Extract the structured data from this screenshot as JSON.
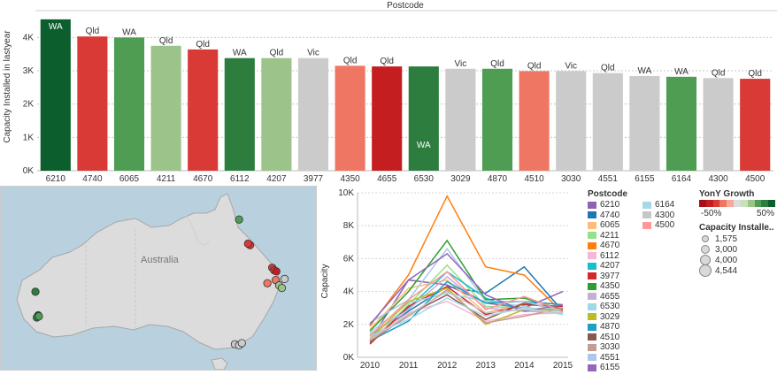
{
  "chart_data": [
    {
      "type": "bar",
      "title": "Postcode",
      "ylabel": "Capacity Installed in lastyear",
      "ylim": [
        0,
        4700
      ],
      "yticks": [
        0,
        1000,
        2000,
        3000,
        4000
      ],
      "ytick_labels": [
        "0K",
        "1K",
        "2K",
        "3K",
        "4K"
      ],
      "grid": true,
      "categories": [
        "6210",
        "4740",
        "6065",
        "4211",
        "4670",
        "6112",
        "4207",
        "3977",
        "4350",
        "4655",
        "6530",
        "3029",
        "4870",
        "4510",
        "3030",
        "4551",
        "6155",
        "6164",
        "4300",
        "4500"
      ],
      "values": [
        4544,
        4030,
        4000,
        3750,
        3640,
        3380,
        3380,
        3380,
        3150,
        3130,
        3130,
        3060,
        3060,
        2990,
        2990,
        2930,
        2840,
        2820,
        2780,
        2760
      ],
      "state_labels": [
        "WA",
        "Qld",
        "WA",
        "Qld",
        "Qld",
        "WA",
        "Qld",
        "Vic",
        "Qld",
        "Qld",
        "WA",
        "Vic",
        "Qld",
        "Qld",
        "Vic",
        "Qld",
        "WA",
        "WA",
        "Qld",
        "Qld"
      ],
      "bar_colors": [
        "#0c5e2c",
        "#d93a36",
        "#4f9d53",
        "#9cc48a",
        "#d93a36",
        "#2c7d3e",
        "#9cc48a",
        "#cbcbcb",
        "#f07664",
        "#c41e20",
        "#2c7d3e",
        "#cbcbcb",
        "#4f9d53",
        "#f07664",
        "#cbcbcb",
        "#cbcbcb",
        "#cbcbcb",
        "#4f9d53",
        "#cbcbcb",
        "#d93a36"
      ]
    },
    {
      "type": "line",
      "ylabel": "Capacity",
      "x": [
        2010,
        2011,
        2012,
        2013,
        2014,
        2015
      ],
      "ylim": [
        0,
        10000
      ],
      "yticks": [
        0,
        2000,
        4000,
        6000,
        8000,
        10000
      ],
      "ytick_labels": [
        "0K",
        "2K",
        "4K",
        "6K",
        "8K",
        "10K"
      ],
      "series": [
        {
          "name": "6210",
          "color": "#8d63b4",
          "values": [
            1000,
            4700,
            4400,
            3300,
            3000,
            4000
          ]
        },
        {
          "name": "4740",
          "color": "#1f77b4",
          "values": [
            1100,
            2800,
            4300,
            3900,
            5500,
            2800
          ]
        },
        {
          "name": "6065",
          "color": "#ffbb78",
          "values": [
            1700,
            4200,
            4700,
            2700,
            3300,
            3000
          ]
        },
        {
          "name": "4211",
          "color": "#98df8a",
          "values": [
            900,
            3200,
            5600,
            3100,
            3000,
            2800
          ]
        },
        {
          "name": "4670",
          "color": "#ff7f0e",
          "values": [
            1900,
            5000,
            9800,
            5500,
            5000,
            2700
          ]
        },
        {
          "name": "6112",
          "color": "#f7b6d2",
          "values": [
            1200,
            2700,
            3400,
            2200,
            2600,
            2700
          ]
        },
        {
          "name": "4207",
          "color": "#17becf",
          "values": [
            1300,
            3000,
            5200,
            3600,
            2800,
            3000
          ]
        },
        {
          "name": "3977",
          "color": "#d62728",
          "values": [
            800,
            3100,
            4300,
            2600,
            3200,
            3100
          ]
        },
        {
          "name": "4350",
          "color": "#2ca02c",
          "values": [
            1600,
            4000,
            7100,
            3500,
            3600,
            2900
          ]
        },
        {
          "name": "4655",
          "color": "#c5b0d5",
          "values": [
            1400,
            2900,
            4900,
            3000,
            2800,
            2700
          ]
        },
        {
          "name": "6530",
          "color": "#9edae5",
          "values": [
            1500,
            3300,
            3900,
            3400,
            3100,
            2600
          ]
        },
        {
          "name": "3029",
          "color": "#bcbd22",
          "values": [
            1100,
            3400,
            4200,
            2000,
            2900,
            2900
          ]
        },
        {
          "name": "4870",
          "color": "#1f9fc4",
          "values": [
            1000,
            2200,
            4600,
            3300,
            3400,
            3200
          ]
        },
        {
          "name": "4510",
          "color": "#8c564b",
          "values": [
            900,
            2600,
            3800,
            2300,
            3300,
            2900
          ]
        },
        {
          "name": "3030",
          "color": "#c49c94",
          "values": [
            1000,
            2500,
            4100,
            2100,
            2500,
            3000
          ]
        },
        {
          "name": "4551",
          "color": "#aec7e8",
          "values": [
            2100,
            3500,
            6600,
            3400,
            3400,
            2800
          ]
        },
        {
          "name": "6155",
          "color": "#9467bd",
          "values": [
            2000,
            4700,
            6300,
            3800,
            2800,
            3200
          ]
        },
        {
          "name": "6164",
          "color": "#a8d7e8",
          "values": [
            1300,
            2300,
            3600,
            2500,
            3000,
            2600
          ]
        },
        {
          "name": "4300",
          "color": "#c7c7c7",
          "values": [
            1100,
            2600,
            4000,
            2700,
            2900,
            2700
          ]
        },
        {
          "name": "4500",
          "color": "#ff9896",
          "values": [
            1300,
            3500,
            5200,
            2900,
            3700,
            2800
          ]
        }
      ]
    }
  ],
  "map": {
    "country_label": "Australia",
    "points": [
      {
        "color": "#4f9d53",
        "lon": 145.2,
        "lat": -14.5
      },
      {
        "color": "#d93a36",
        "lon": 146.8,
        "lat": -19.3
      },
      {
        "color": "#d93a36",
        "lon": 146.5,
        "lat": -19.0
      },
      {
        "color": "#d93a36",
        "lon": 150.0,
        "lat": -23.5
      },
      {
        "color": "#d93a36",
        "lon": 150.3,
        "lat": -24.0
      },
      {
        "color": "#c41e20",
        "lon": 150.6,
        "lat": -24.2
      },
      {
        "color": "#f07664",
        "lon": 150.5,
        "lat": -25.8
      },
      {
        "color": "#f07664",
        "lon": 149.3,
        "lat": -26.4
      },
      {
        "color": "#9cc48a",
        "lon": 151.0,
        "lat": -26.8
      },
      {
        "color": "#9cc48a",
        "lon": 151.4,
        "lat": -27.3
      },
      {
        "color": "#cbcbcb",
        "lon": 151.8,
        "lat": -25.6
      },
      {
        "color": "#2c7d3e",
        "lon": 115.7,
        "lat": -28.0
      },
      {
        "color": "#0c5e2c",
        "lon": 116.1,
        "lat": -32.4
      },
      {
        "color": "#2c7d3e",
        "lon": 115.9,
        "lat": -32.8
      },
      {
        "color": "#4f9d53",
        "lon": 116.2,
        "lat": -32.6
      },
      {
        "color": "#cbcbcb",
        "lon": 144.6,
        "lat": -37.8
      },
      {
        "color": "#cbcbcb",
        "lon": 145.2,
        "lat": -38.0
      },
      {
        "color": "#cbcbcb",
        "lon": 145.6,
        "lat": -37.6
      }
    ]
  },
  "legend": {
    "postcode_title": "Postcode",
    "growth_title": "YonY Growth",
    "growth_min": "-50%",
    "growth_max": "50%",
    "growth_colors": [
      "#a50f15",
      "#c41e20",
      "#d93a36",
      "#f07664",
      "#f7a899",
      "#dddddd",
      "#c7e2b9",
      "#9cc48a",
      "#4f9d53",
      "#2c7d3e",
      "#0c5e2c"
    ],
    "size_title": "Capacity Installe..",
    "size_items": [
      "1,575",
      "3,000",
      "4,000",
      "4,544"
    ]
  }
}
